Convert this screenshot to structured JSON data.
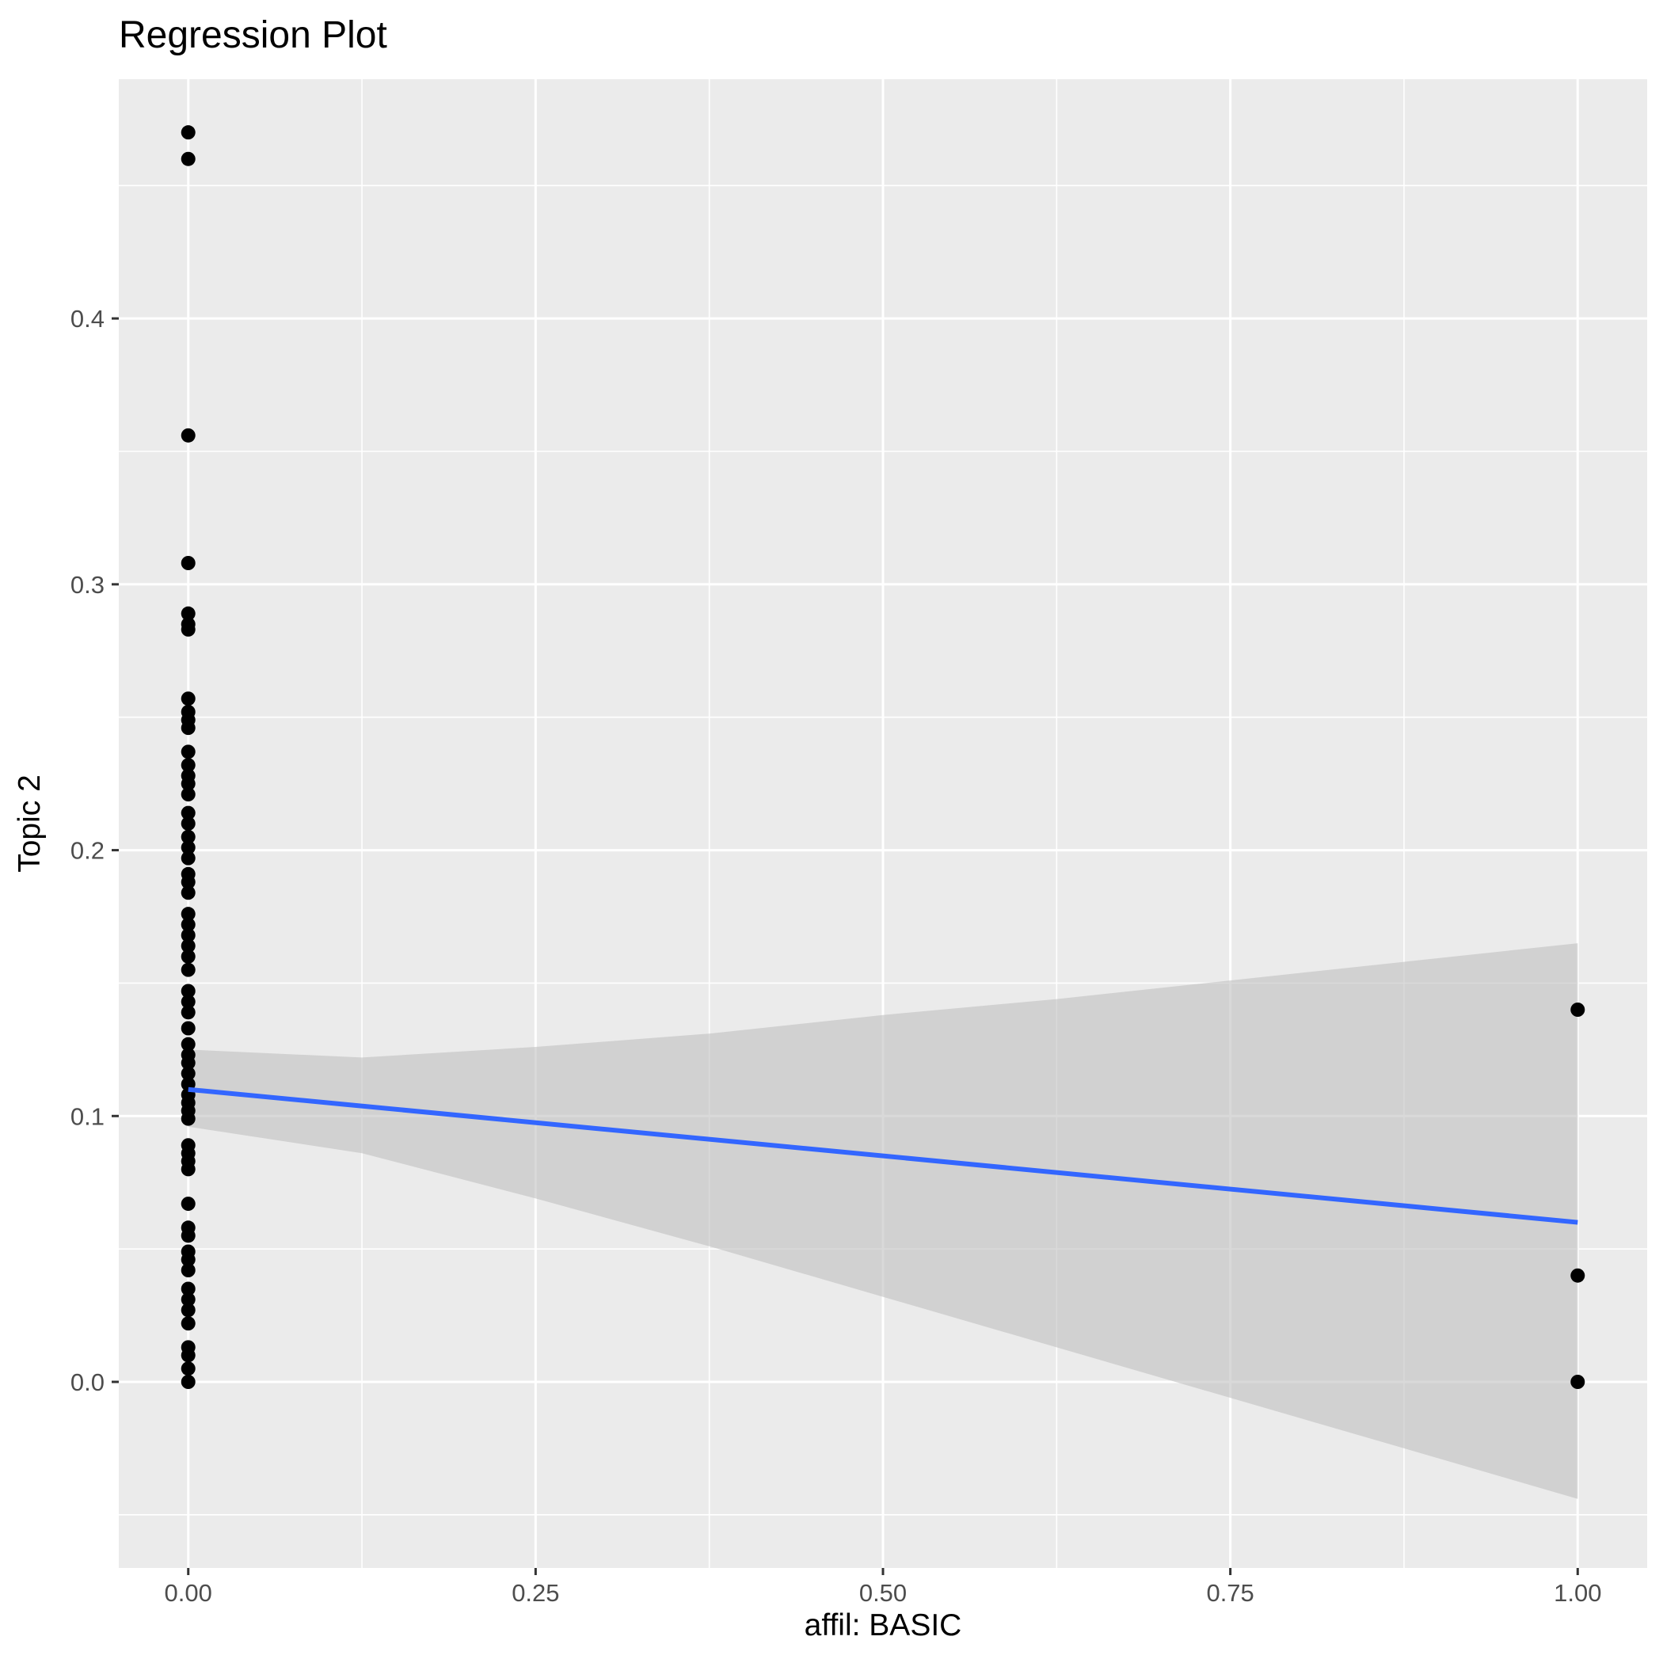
{
  "chart_data": {
    "type": "scatter",
    "title": "Regression Plot",
    "xlabel": "affil: BASIC",
    "ylabel": "Topic 2",
    "xlim": [
      -0.05,
      1.05
    ],
    "ylim": [
      -0.07,
      0.49
    ],
    "x_ticks": [
      0,
      0.25,
      0.5,
      0.75,
      1
    ],
    "x_tick_labels": [
      "0.00",
      "0.25",
      "0.50",
      "0.75",
      "1.00"
    ],
    "y_ticks": [
      0,
      0.1,
      0.2,
      0.3,
      0.4
    ],
    "y_tick_labels": [
      "0.0",
      "0.1",
      "0.2",
      "0.3",
      "0.4"
    ],
    "grid": true,
    "colors": {
      "panel": "#ebebeb",
      "grid": "#ffffff",
      "points": "#000000",
      "line": "#3366ff",
      "ribbon": "#bfbfbf"
    },
    "points": [
      [
        0,
        0.47
      ],
      [
        0,
        0.46
      ],
      [
        0,
        0.356
      ],
      [
        0,
        0.308
      ],
      [
        0,
        0.289
      ],
      [
        0,
        0.285
      ],
      [
        0,
        0.283
      ],
      [
        0,
        0.257
      ],
      [
        0,
        0.252
      ],
      [
        0,
        0.249
      ],
      [
        0,
        0.246
      ],
      [
        0,
        0.237
      ],
      [
        0,
        0.232
      ],
      [
        0,
        0.228
      ],
      [
        0,
        0.225
      ],
      [
        0,
        0.221
      ],
      [
        0,
        0.214
      ],
      [
        0,
        0.21
      ],
      [
        0,
        0.205
      ],
      [
        0,
        0.201
      ],
      [
        0,
        0.197
      ],
      [
        0,
        0.191
      ],
      [
        0,
        0.188
      ],
      [
        0,
        0.184
      ],
      [
        0,
        0.176
      ],
      [
        0,
        0.172
      ],
      [
        0,
        0.168
      ],
      [
        0,
        0.164
      ],
      [
        0,
        0.16
      ],
      [
        0,
        0.155
      ],
      [
        0,
        0.147
      ],
      [
        0,
        0.143
      ],
      [
        0,
        0.139
      ],
      [
        0,
        0.133
      ],
      [
        0,
        0.127
      ],
      [
        0,
        0.123
      ],
      [
        0,
        0.12
      ],
      [
        0,
        0.116
      ],
      [
        0,
        0.112
      ],
      [
        0,
        0.108
      ],
      [
        0,
        0.105
      ],
      [
        0,
        0.102
      ],
      [
        0,
        0.099
      ],
      [
        0,
        0.089
      ],
      [
        0,
        0.086
      ],
      [
        0,
        0.083
      ],
      [
        0,
        0.08
      ],
      [
        0,
        0.067
      ],
      [
        0,
        0.058
      ],
      [
        0,
        0.055
      ],
      [
        0,
        0.049
      ],
      [
        0,
        0.046
      ],
      [
        0,
        0.042
      ],
      [
        0,
        0.035
      ],
      [
        0,
        0.031
      ],
      [
        0,
        0.027
      ],
      [
        0,
        0.022
      ],
      [
        0,
        0.013
      ],
      [
        0,
        0.01
      ],
      [
        0,
        0.005
      ],
      [
        0,
        0
      ],
      [
        1,
        0.14
      ],
      [
        1,
        0.04
      ],
      [
        1,
        0
      ]
    ],
    "regression_line": {
      "x": [
        0,
        1
      ],
      "y": [
        0.11,
        0.06
      ]
    },
    "confidence_band": {
      "x": [
        0,
        0.125,
        0.25,
        0.375,
        0.5,
        0.625,
        0.75,
        0.875,
        1
      ],
      "upper": [
        0.125,
        0.122,
        0.126,
        0.131,
        0.138,
        0.144,
        0.151,
        0.158,
        0.165
      ],
      "lower": [
        0.096,
        0.086,
        0.069,
        0.051,
        0.032,
        0.013,
        -0.006,
        -0.025,
        -0.044
      ]
    }
  }
}
